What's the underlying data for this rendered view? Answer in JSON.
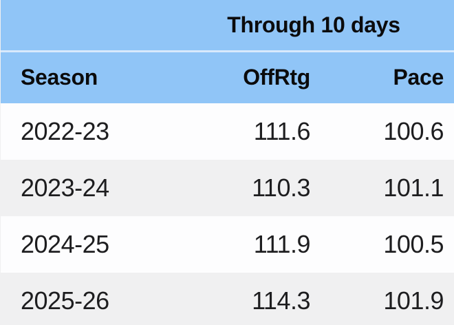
{
  "table": {
    "spanner_title": "Through 10 days",
    "columns": {
      "season": "Season",
      "offrtg": "OffRtg",
      "pace": "Pace"
    },
    "rows": [
      {
        "season": "2022-23",
        "offrtg": "111.6",
        "pace": "100.6"
      },
      {
        "season": "2023-24",
        "offrtg": "110.3",
        "pace": "101.1"
      },
      {
        "season": "2024-25",
        "offrtg": "111.9",
        "pace": "100.5"
      },
      {
        "season": "2025-26",
        "offrtg": "114.3",
        "pace": "101.9"
      }
    ]
  },
  "colors": {
    "header_blue": "#90C5F7",
    "header_separator_line": "#D8E9FC",
    "row_white": "#FDFDFE",
    "row_gray": "#F0F0F1",
    "header_text": "#0B0B0C",
    "data_text": "#1D1D1F"
  },
  "chart_data": {
    "type": "table",
    "title": "Through 10 days",
    "columns": [
      "Season",
      "OffRtg",
      "Pace"
    ],
    "rows": [
      [
        "2022-23",
        111.6,
        100.6
      ],
      [
        "2023-24",
        110.3,
        101.1
      ],
      [
        "2024-25",
        111.9,
        100.5
      ],
      [
        "2025-26",
        114.3,
        101.9
      ]
    ],
    "notes": "Header band color #90C5F7; alternating row stripes white/#F0F0F1; season column left-aligned, numeric columns right-aligned; last row clipped at bottom edge of screenshot."
  }
}
